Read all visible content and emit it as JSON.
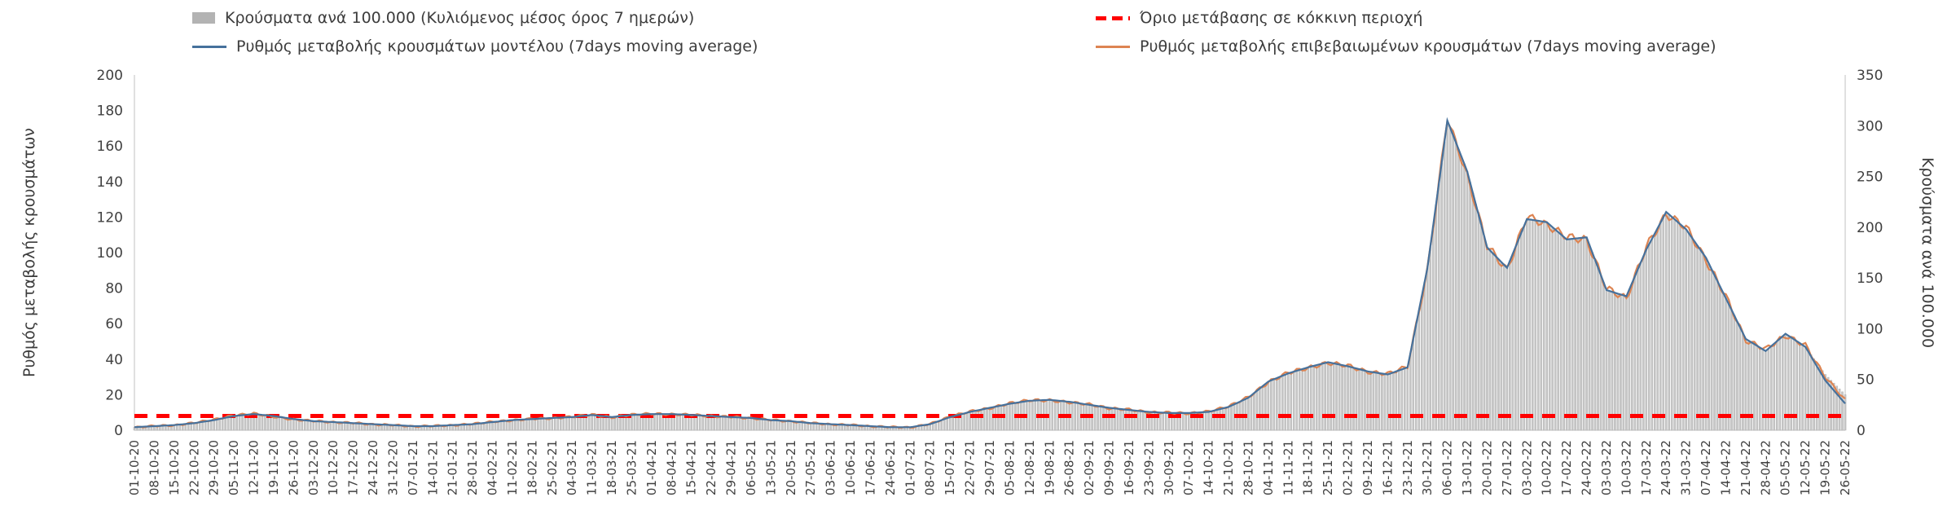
{
  "legend": {
    "bars_label": "Κρούσματα ανά 100.000 (Κυλιόμενος μέσος όρος 7 ημερών)",
    "model_label": "Ρυθμός μεταβολής κρουσμάτων μοντέλου (7days moving average)",
    "threshold_label": "Όριο μετάβασης σε κόκκινη περιοχή",
    "confirmed_label": "Ρυθμός μεταβολής επιβεβαιωμένων κρουσμάτων (7days moving average)"
  },
  "chart_data": {
    "type": "bar",
    "title": "",
    "left_axis": {
      "label": "Ρυθμός μεταβολής κρουσμάτων",
      "min": 0,
      "max": 200,
      "ticks": [
        0,
        20,
        40,
        60,
        80,
        100,
        120,
        140,
        160,
        180,
        200
      ]
    },
    "right_axis": {
      "label": "Κρούσματα ανά 100.000",
      "min": 0,
      "max": 350,
      "ticks": [
        0,
        50,
        100,
        150,
        200,
        250,
        300,
        350
      ]
    },
    "grid": false,
    "legend_position": "top",
    "categories": [
      "01-10-20",
      "08-10-20",
      "15-10-20",
      "22-10-20",
      "29-10-20",
      "05-11-20",
      "12-11-20",
      "19-11-20",
      "26-11-20",
      "03-12-20",
      "10-12-20",
      "17-12-20",
      "24-12-20",
      "31-12-20",
      "07-01-21",
      "14-01-21",
      "21-01-21",
      "28-01-21",
      "04-02-21",
      "11-02-21",
      "18-02-21",
      "25-02-21",
      "04-03-21",
      "11-03-21",
      "18-03-21",
      "25-03-21",
      "01-04-21",
      "08-04-21",
      "15-04-21",
      "22-04-21",
      "29-04-21",
      "06-05-21",
      "13-05-21",
      "20-05-21",
      "27-05-21",
      "03-06-21",
      "10-06-21",
      "17-06-21",
      "24-06-21",
      "01-07-21",
      "08-07-21",
      "15-07-21",
      "22-07-21",
      "29-07-21",
      "05-08-21",
      "12-08-21",
      "19-08-21",
      "26-08-21",
      "02-09-21",
      "09-09-21",
      "16-09-21",
      "23-09-21",
      "30-09-21",
      "07-10-21",
      "14-10-21",
      "21-10-21",
      "28-10-21",
      "04-11-21",
      "11-11-21",
      "18-11-21",
      "25-11-21",
      "02-12-21",
      "09-12-21",
      "16-12-21",
      "23-12-21",
      "30-12-21",
      "06-01-22",
      "13-01-22",
      "20-01-22",
      "27-01-22",
      "03-02-22",
      "10-02-22",
      "17-02-22",
      "24-02-22",
      "03-03-22",
      "10-03-22",
      "17-03-22",
      "24-03-22",
      "31-03-22",
      "07-04-22",
      "14-04-22",
      "21-04-22",
      "28-04-22",
      "05-05-22",
      "12-05-22",
      "19-05-22",
      "26-05-22"
    ],
    "bars": {
      "name": "Κρούσματα ανά 100.000 (Κυλιόμενος μέσος όρος 7 ημερών)",
      "axis": "right",
      "values": [
        3,
        4,
        5,
        7,
        10,
        14,
        16,
        14,
        11,
        9,
        8,
        7,
        6,
        5,
        4,
        4,
        5,
        6,
        8,
        10,
        11,
        12,
        13,
        15,
        13,
        15,
        16,
        16,
        15,
        14,
        13,
        12,
        10,
        9,
        7,
        6,
        5,
        4,
        3,
        3,
        6,
        13,
        18,
        22,
        26,
        29,
        30,
        28,
        25,
        22,
        20,
        18,
        17,
        17,
        18,
        23,
        32,
        48,
        56,
        62,
        67,
        63,
        58,
        55,
        62,
        160,
        305,
        255,
        180,
        160,
        208,
        205,
        188,
        190,
        138,
        132,
        178,
        215,
        198,
        170,
        130,
        90,
        78,
        95,
        82,
        55,
        35
      ]
    },
    "series": [
      {
        "name": "Ρυθμός μεταβολής κρουσμάτων μοντέλου (7days moving average)",
        "axis": "left",
        "values": [
          1.7,
          2.3,
          2.9,
          4,
          5.7,
          8,
          9.1,
          8,
          6.3,
          5.1,
          4.6,
          4,
          3.4,
          2.9,
          2.3,
          2.3,
          2.9,
          3.4,
          4.6,
          5.7,
          6.3,
          6.9,
          7.4,
          8.6,
          7.4,
          8.6,
          9.1,
          9.1,
          8.6,
          8,
          7.4,
          6.9,
          5.7,
          5.1,
          4,
          3.4,
          2.9,
          2.3,
          1.7,
          1.7,
          3.4,
          7.4,
          10.3,
          12.6,
          14.9,
          16.6,
          17.1,
          16,
          14.3,
          12.6,
          11.4,
          10.3,
          9.7,
          9.7,
          10.3,
          13.1,
          18.3,
          27.4,
          32,
          35.4,
          38.3,
          36,
          33.1,
          31.4,
          35.4,
          91.4,
          174.3,
          145.7,
          102.9,
          91.4,
          118.9,
          117.1,
          107.4,
          108.6,
          78.9,
          75.4,
          101.7,
          122.9,
          113.1,
          97.1,
          74.3,
          51.4,
          44.6,
          54.3,
          46.9,
          28,
          15
        ]
      },
      {
        "name": "Ρυθμός μεταβολής επιβεβαιωμένων κρουσμάτων (7days moving average)",
        "axis": "left",
        "values": [
          1.5,
          2.5,
          2.7,
          4.2,
          6,
          8.3,
          9.4,
          7.6,
          6,
          5.3,
          4.4,
          4.2,
          3.2,
          3,
          2.1,
          2.5,
          2.7,
          3.6,
          4.8,
          5.5,
          6.5,
          6.7,
          7.6,
          8.8,
          7.2,
          8.8,
          9.3,
          8.9,
          8.8,
          7.8,
          7.6,
          6.7,
          5.9,
          4.9,
          4.2,
          3.2,
          3.1,
          2.1,
          1.9,
          1.5,
          3.6,
          7.6,
          10.6,
          12.3,
          15.2,
          16.9,
          16.8,
          15.7,
          14.6,
          12.3,
          11.7,
          10,
          10,
          9.4,
          10.6,
          13.4,
          18.7,
          27,
          32.5,
          35,
          37.9,
          36.4,
          32.7,
          31.8,
          35.9,
          90,
          176,
          143,
          104,
          90,
          120.5,
          115.5,
          109,
          107,
          80,
          74,
          103.4,
          121.5,
          114.5,
          95.5,
          75.5,
          50.5,
          45.8,
          53.2,
          47.8,
          30,
          17
        ]
      }
    ],
    "threshold": {
      "name": "Όριο μετάβασης σε κόκκινη περιοχή",
      "axis": "left",
      "value": 8,
      "style": "dashed"
    },
    "colors": {
      "bar_fill": "#c7c7c7",
      "bar_edge": "#adadad",
      "model_line": "#46719c",
      "confirmed_line": "#dd8452",
      "threshold": "#ff0000",
      "axis_line": "#d6d6d6",
      "tick_text": "#404040",
      "legend_text": "#3c3c3c"
    }
  }
}
